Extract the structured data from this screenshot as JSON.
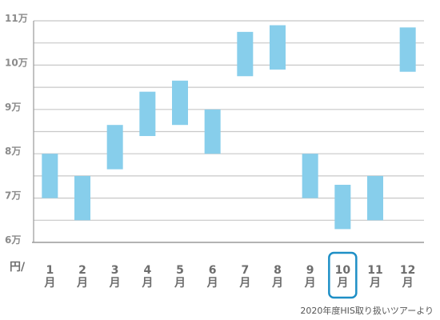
{
  "chart_data": {
    "type": "bar",
    "subtype": "floating-range",
    "categories": [
      "1月",
      "2月",
      "3月",
      "4月",
      "5月",
      "6月",
      "7月",
      "8月",
      "9月",
      "10月",
      "11月",
      "12月"
    ],
    "series": [
      {
        "ranges": [
          [
            70000,
            80000
          ],
          [
            65000,
            75000
          ],
          [
            76500,
            86500
          ],
          [
            84000,
            94000
          ],
          [
            86500,
            96500
          ],
          [
            80000,
            90000
          ],
          [
            97500,
            107500
          ],
          [
            99000,
            109000
          ],
          [
            70000,
            80000
          ],
          [
            63000,
            73000
          ],
          [
            65000,
            75000
          ],
          [
            98500,
            108500
          ]
        ]
      }
    ],
    "ylim": [
      60000,
      110000
    ],
    "y_ticks": [
      {
        "value": 60000,
        "label": "6万"
      },
      {
        "value": 70000,
        "label": "7万"
      },
      {
        "value": 80000,
        "label": "8万"
      },
      {
        "value": 90000,
        "label": "9万"
      },
      {
        "value": 100000,
        "label": "10万"
      },
      {
        "value": 110000,
        "label": "11万"
      }
    ],
    "y_unit": "円/",
    "highlight_category": "10月",
    "source_note": "2020年度HIS取り扱いツアーより",
    "grid": true,
    "colors": {
      "bar": "#87ceeb",
      "highlight": "#1e8fc6",
      "grid": "#c8c8c8",
      "axis": "#9a9a9a"
    }
  }
}
